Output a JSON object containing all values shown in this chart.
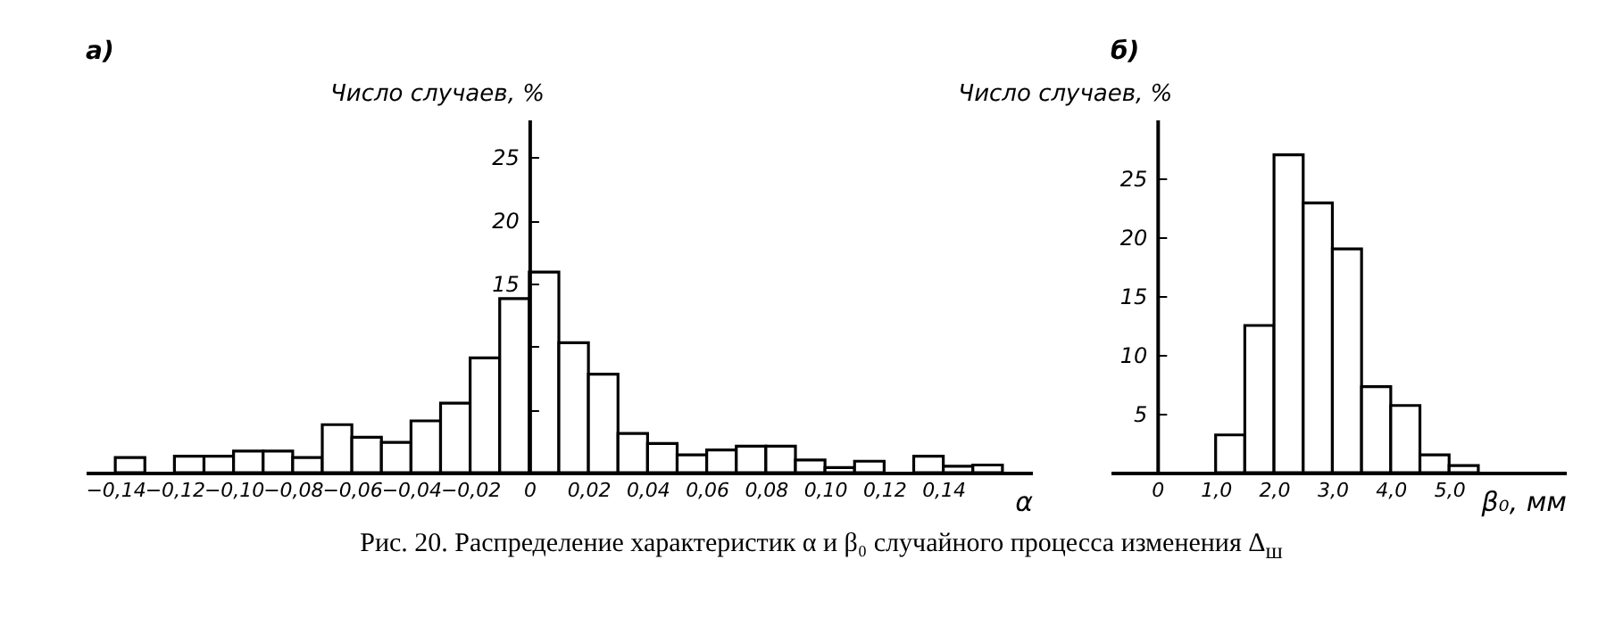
{
  "chart_data": [
    {
      "type": "histogram",
      "title": "а)",
      "ylabel": "Число случаев, %",
      "xlabel": "α",
      "color": "#ffffff",
      "bins": [
        -0.14,
        -0.13,
        -0.12,
        -0.11,
        -0.1,
        -0.09,
        -0.08,
        -0.07,
        -0.06,
        -0.05,
        -0.04,
        -0.03,
        -0.02,
        -0.01,
        0,
        0.01,
        0.02,
        0.03,
        0.04,
        0.05,
        0.06,
        0.07,
        0.08,
        0.09,
        0.1,
        0.11,
        0.12,
        0.13,
        0.14,
        0.15,
        0.16
      ],
      "values": [
        1.2,
        0,
        1.3,
        1.3,
        1.7,
        1.7,
        1.2,
        3.8,
        2.8,
        2.4,
        4.1,
        5.5,
        9.1,
        13.8,
        15.9,
        10.3,
        7.8,
        3.1,
        2.3,
        1.4,
        1.8,
        2.1,
        2.1,
        1.0,
        0.4,
        0.9,
        0,
        1.3,
        0.5,
        0.6
      ],
      "xlim": [
        -0.15,
        0.17
      ],
      "ylim": [
        0,
        28
      ],
      "xticks": [
        {
          "value": -0.14,
          "label": "−0,14"
        },
        {
          "value": -0.12,
          "label": "−0,12"
        },
        {
          "value": -0.1,
          "label": "−0,10"
        },
        {
          "value": -0.08,
          "label": "−0,08"
        },
        {
          "value": -0.06,
          "label": "−0,06"
        },
        {
          "value": -0.04,
          "label": "−0,04"
        },
        {
          "value": -0.02,
          "label": "−0,02"
        },
        0,
        {
          "value": 0.02,
          "label": "0,02"
        },
        {
          "value": 0.04,
          "label": "0,04"
        },
        {
          "value": 0.06,
          "label": "0,06"
        },
        {
          "value": 0.08,
          "label": "0,08"
        },
        {
          "value": 0.1,
          "label": "0,10"
        },
        {
          "value": 0.12,
          "label": "0,12"
        },
        {
          "value": 0.14,
          "label": "0,14"
        }
      ],
      "yticks": [
        {
          "value": 5,
          "label": null
        },
        {
          "value": 10,
          "label": null
        },
        15,
        20,
        25
      ],
      "annotations": [
        "Рис. 20. Распределение характеристик α и β₀ случайного процесса изменения Δ$_{ш}$"
      ]
    },
    {
      "type": "histogram",
      "title": "б)",
      "ylabel": "Число случаев, %",
      "xlabel": "β₀, мм",
      "color": "#ffffff",
      "bins": [
        1.0,
        1.5,
        2.0,
        2.5,
        3.0,
        3.5,
        4.0,
        4.5,
        5.0,
        5.5
      ],
      "values": [
        3.2,
        12.5,
        27.0,
        22.9,
        19.0,
        7.3,
        5.7,
        1.5,
        0.6
      ],
      "xlim": [
        -0.8,
        7.0
      ],
      "ylim": [
        0,
        30
      ],
      "xticks": [
        0,
        {
          "value": 1,
          "label": "1,0"
        },
        {
          "value": 2,
          "label": "2,0"
        },
        {
          "value": 3,
          "label": "3,0"
        },
        {
          "value": 4,
          "label": "4,0"
        },
        {
          "value": 5,
          "label": "5,0"
        }
      ],
      "yticks": [
        5,
        10,
        15,
        20,
        25
      ]
    }
  ]
}
